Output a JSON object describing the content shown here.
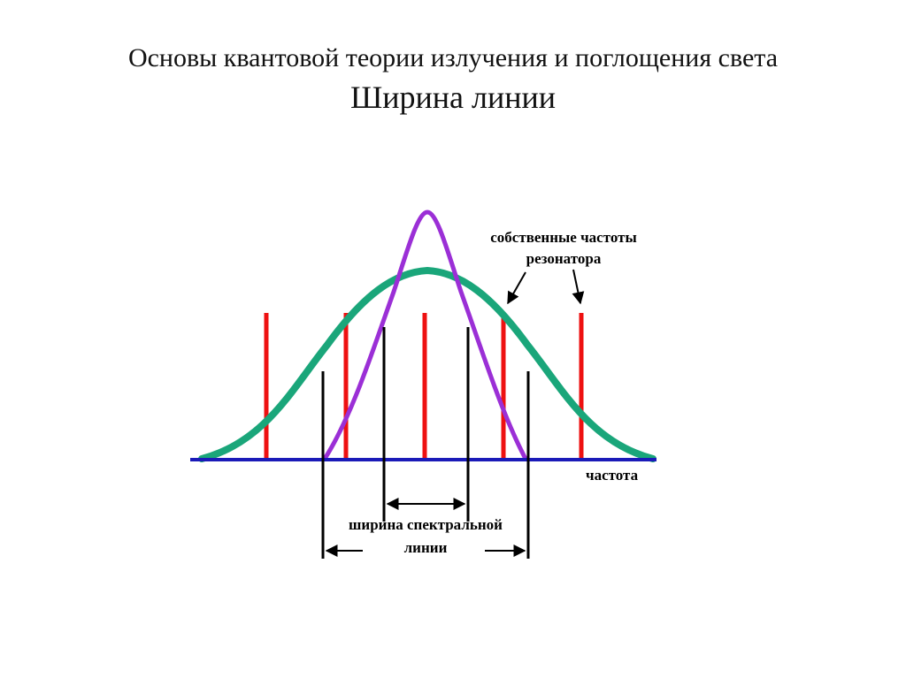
{
  "slide": {
    "title": "Основы квантовой теории излучения и поглощения света",
    "subtitle": "Ширина линии"
  },
  "diagram": {
    "labels": {
      "resonator_line1": "собственные частоты",
      "resonator_line2": "резонатора",
      "axis": "частота",
      "width_line1": "ширина спектральной",
      "width_line2": "линии"
    },
    "colors": {
      "axis": "#1a1ab8",
      "wide_curve": "#1aa67a",
      "narrow_curve": "#9b2fd6",
      "resonator_lines": "#ee1111",
      "markers": "#000000"
    }
  }
}
